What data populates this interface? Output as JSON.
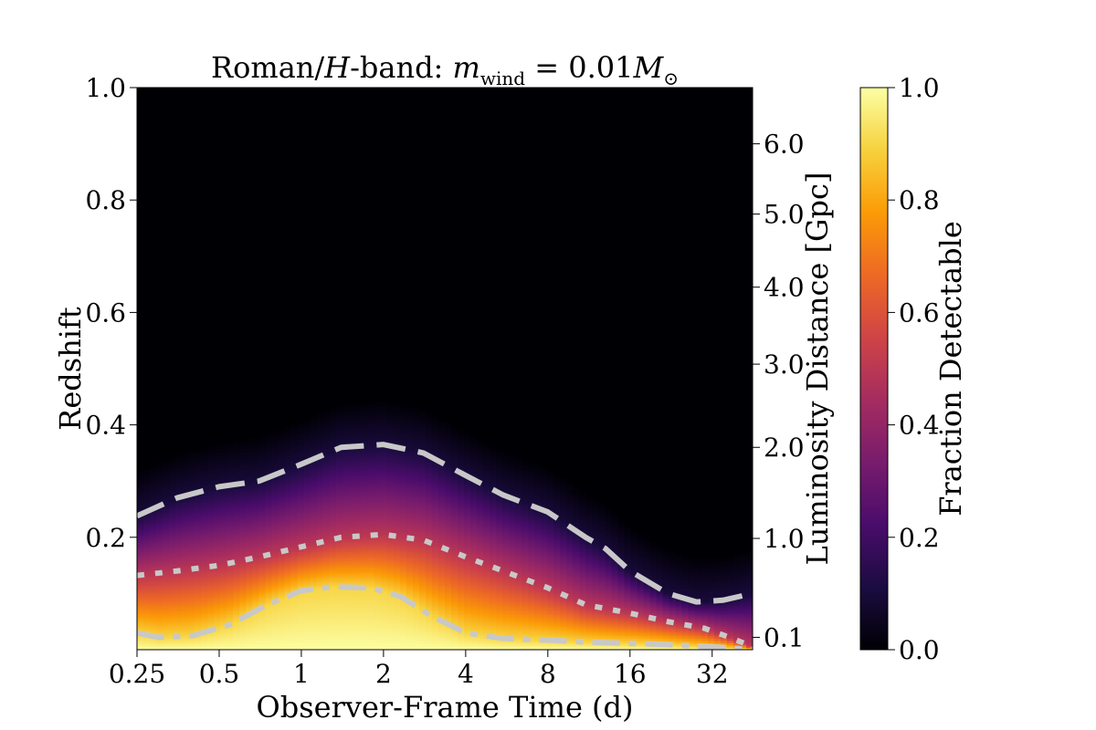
{
  "chart_data": {
    "type": "heatmap",
    "title": "Roman/H-band: m_wind = 0.01M⊙",
    "title_parts": {
      "prefix": "Roman/",
      "band": "H",
      "band_suffix": "-band: ",
      "var": "m",
      "var_sub": "wind",
      "equals_value": " = 0.01",
      "mass_symbol": "M",
      "mass_sub": "⊙"
    },
    "xlabel": "Observer-Frame Time (d)",
    "ylabel": "Redshift",
    "y2label": "Luminosity Distance [Gpc]",
    "colorbar_label": "Fraction Detectable",
    "x_scale": "log2",
    "xlim": [
      0.25,
      45
    ],
    "ylim": [
      0.0,
      1.0
    ],
    "x_ticks": [
      0.25,
      0.5,
      1,
      2,
      4,
      8,
      16,
      32
    ],
    "x_tick_labels": [
      "0.25",
      "0.5",
      "1",
      "2",
      "4",
      "8",
      "16",
      "32"
    ],
    "y_ticks": [
      0.2,
      0.4,
      0.6,
      0.8,
      1.0
    ],
    "y_tick_labels": [
      "0.2",
      "0.4",
      "0.6",
      "0.8",
      "1.0"
    ],
    "y2_ticks": [
      {
        "z": 0.022,
        "label": "0.1"
      },
      {
        "z": 0.198,
        "label": "1.0"
      },
      {
        "z": 0.36,
        "label": "2.0"
      },
      {
        "z": 0.508,
        "label": "3.0"
      },
      {
        "z": 0.645,
        "label": "4.0"
      },
      {
        "z": 0.775,
        "label": "5.0"
      },
      {
        "z": 0.9,
        "label": "6.0"
      }
    ],
    "colorbar_range": [
      0.0,
      1.0
    ],
    "colorbar_ticks": [
      0.0,
      0.2,
      0.4,
      0.6,
      0.8,
      1.0
    ],
    "colorbar_tick_labels": [
      "0.0",
      "0.2",
      "0.4",
      "0.6",
      "0.8",
      "1.0"
    ],
    "colormap": "inferno",
    "colormap_stops": [
      "#000004",
      "#1b0c41",
      "#4a0c6b",
      "#781c6d",
      "#a52c60",
      "#cf4446",
      "#ed6925",
      "#fb9b06",
      "#f7d13d",
      "#fcffa4"
    ],
    "contour_color": "#c8c8c8",
    "contours": [
      {
        "level": 0.1,
        "style": "dashed",
        "points": [
          [
            0.25,
            0.238
          ],
          [
            0.35,
            0.27
          ],
          [
            0.5,
            0.29
          ],
          [
            0.7,
            0.3
          ],
          [
            1.0,
            0.33
          ],
          [
            1.4,
            0.36
          ],
          [
            2.0,
            0.365
          ],
          [
            2.8,
            0.35
          ],
          [
            4.0,
            0.31
          ],
          [
            5.5,
            0.275
          ],
          [
            8.0,
            0.245
          ],
          [
            11.0,
            0.2
          ],
          [
            13.0,
            0.18
          ],
          [
            16.0,
            0.14
          ],
          [
            22.0,
            0.1
          ],
          [
            28.0,
            0.085
          ],
          [
            35.0,
            0.088
          ],
          [
            45.0,
            0.1
          ]
        ]
      },
      {
        "level": 0.5,
        "style": "dotted",
        "points": [
          [
            0.25,
            0.132
          ],
          [
            0.35,
            0.14
          ],
          [
            0.5,
            0.15
          ],
          [
            0.7,
            0.165
          ],
          [
            1.0,
            0.183
          ],
          [
            1.4,
            0.2
          ],
          [
            2.0,
            0.205
          ],
          [
            2.8,
            0.195
          ],
          [
            4.0,
            0.165
          ],
          [
            5.5,
            0.14
          ],
          [
            8.0,
            0.11
          ],
          [
            11.0,
            0.08
          ],
          [
            16.0,
            0.065
          ],
          [
            22.0,
            0.05
          ],
          [
            30.0,
            0.038
          ],
          [
            38.0,
            0.02
          ],
          [
            45.0,
            0.005
          ]
        ]
      },
      {
        "level": 0.9,
        "style": "dashdot",
        "points": [
          [
            0.25,
            0.03
          ],
          [
            0.3,
            0.022
          ],
          [
            0.4,
            0.025
          ],
          [
            0.55,
            0.045
          ],
          [
            0.75,
            0.08
          ],
          [
            1.0,
            0.105
          ],
          [
            1.3,
            0.112
          ],
          [
            1.8,
            0.11
          ],
          [
            2.3,
            0.095
          ],
          [
            3.0,
            0.06
          ],
          [
            4.0,
            0.03
          ],
          [
            5.5,
            0.02
          ],
          [
            8.0,
            0.017
          ],
          [
            12.0,
            0.013
          ],
          [
            20.0,
            0.01
          ],
          [
            35.0,
            0.004
          ],
          [
            45.0,
            0.0
          ]
        ]
      }
    ]
  }
}
